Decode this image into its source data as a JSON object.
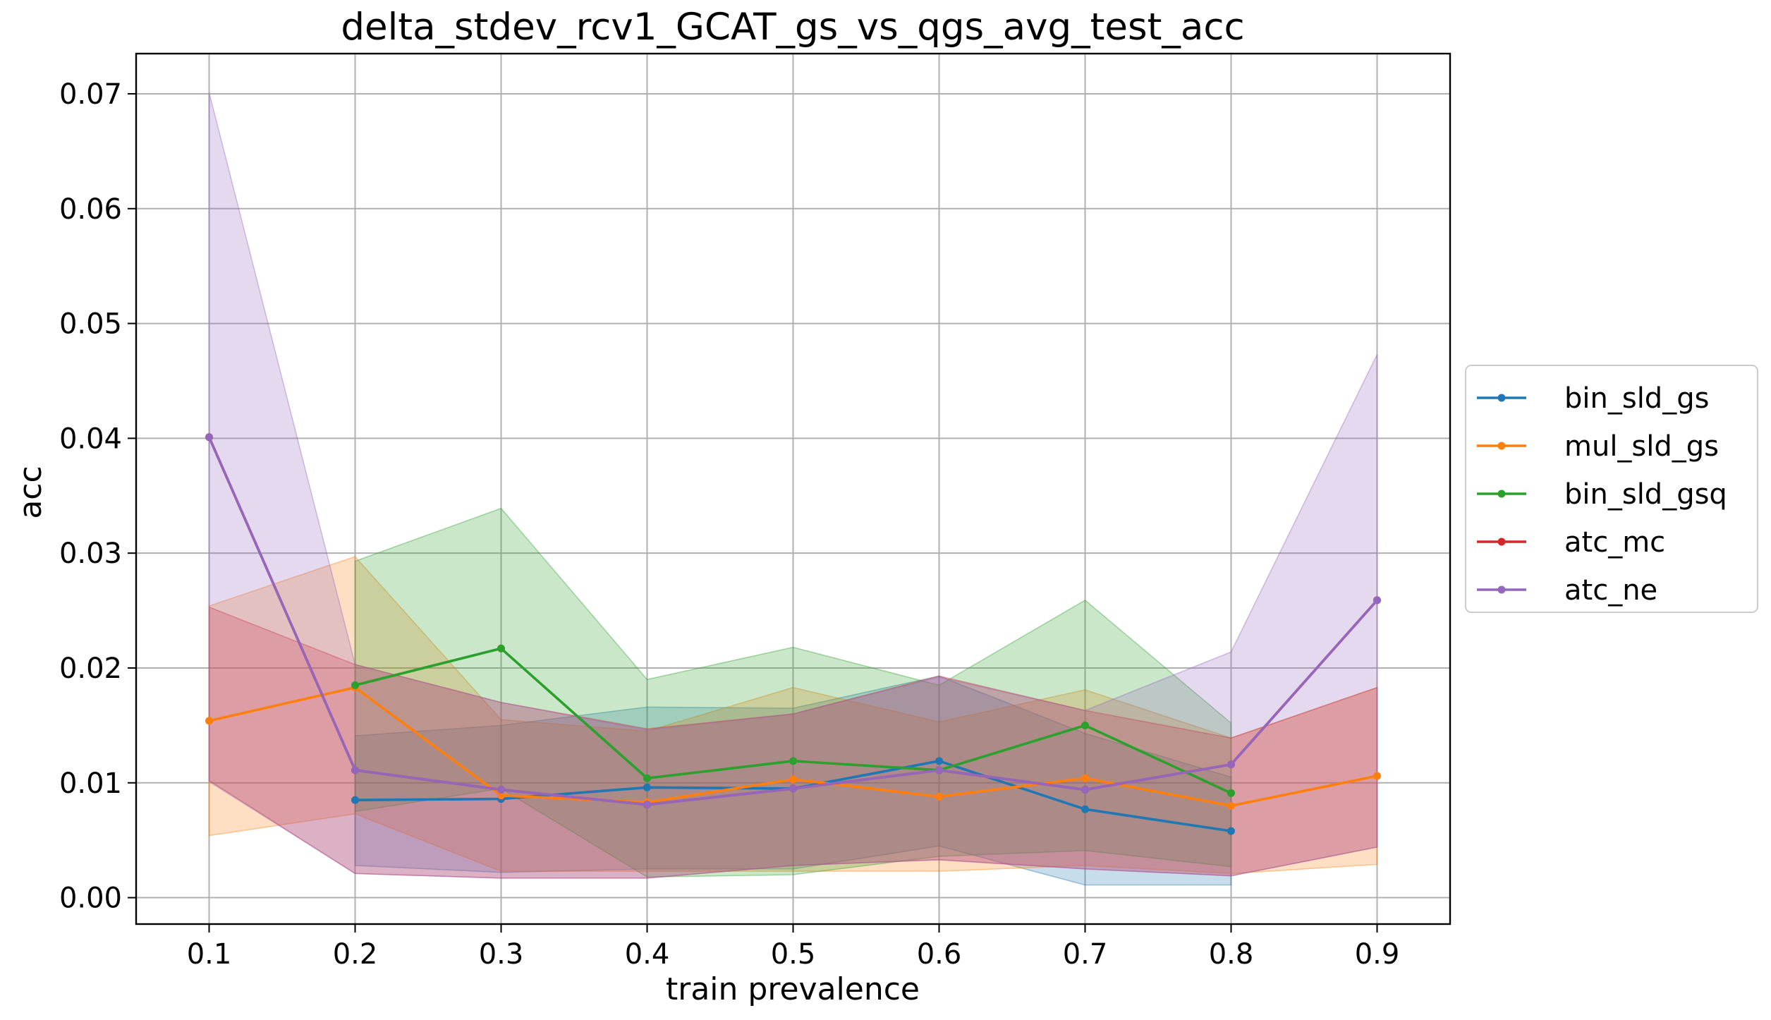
{
  "chart_data": {
    "type": "line",
    "title": "delta_stdev_rcv1_GCAT_gs_vs_qgs_avg_test_acc",
    "xlabel": "train prevalence",
    "ylabel": "acc",
    "xlim": [
      0.05,
      0.95
    ],
    "ylim": [
      -0.0023,
      0.0735
    ],
    "grid": true,
    "legend_position": "center-right-outside",
    "x_ticks": [
      "0.1",
      "0.2",
      "0.3",
      "0.4",
      "0.5",
      "0.6",
      "0.7",
      "0.8",
      "0.9"
    ],
    "y_ticks": [
      "0.00",
      "0.01",
      "0.02",
      "0.03",
      "0.04",
      "0.05",
      "0.06",
      "0.07"
    ],
    "series": [
      {
        "name": "bin_sld_gs",
        "color": "#1f77b4",
        "x": [
          0.2,
          0.3,
          0.4,
          0.5,
          0.6,
          0.7,
          0.8
        ],
        "values": [
          0.0085,
          0.0086,
          0.0096,
          0.0095,
          0.0119,
          0.0077,
          0.0058
        ],
        "band_low": [
          0.0028,
          0.0022,
          0.0025,
          0.0025,
          0.0045,
          0.0011,
          0.0011
        ],
        "band_high": [
          0.0141,
          0.015,
          0.0166,
          0.0165,
          0.0193,
          0.0143,
          0.0105
        ]
      },
      {
        "name": "mul_sld_gs",
        "color": "#ff7f0e",
        "x": [
          0.1,
          0.2,
          0.3,
          0.4,
          0.5,
          0.6,
          0.7,
          0.8,
          0.9
        ],
        "values": [
          0.0154,
          0.0183,
          0.0089,
          0.0083,
          0.0103,
          0.0088,
          0.0104,
          0.008,
          0.0106
        ],
        "band_low": [
          0.0054,
          0.0073,
          0.0023,
          0.0023,
          0.0023,
          0.0023,
          0.0028,
          0.0021,
          0.0029
        ],
        "band_high": [
          0.0254,
          0.0297,
          0.0155,
          0.0145,
          0.0183,
          0.0153,
          0.0181,
          0.0139,
          0.0183
        ]
      },
      {
        "name": "bin_sld_gsq",
        "color": "#2ca02c",
        "x": [
          0.2,
          0.3,
          0.4,
          0.5,
          0.6,
          0.7,
          0.8
        ],
        "values": [
          0.0185,
          0.0217,
          0.0104,
          0.0119,
          0.0111,
          0.015,
          0.0091
        ],
        "band_low": [
          0.0075,
          0.0095,
          0.0018,
          0.002,
          0.0036,
          0.0041,
          0.0027
        ],
        "band_high": [
          0.0293,
          0.0339,
          0.019,
          0.0218,
          0.0185,
          0.0259,
          0.0152
        ]
      },
      {
        "name": "atc_mc",
        "color": "#d62728",
        "x": [
          0.1,
          0.2,
          0.3,
          0.4,
          0.5,
          0.6,
          0.7,
          0.8,
          0.9
        ],
        "values": [
          0.0401,
          0.0111,
          0.0094,
          0.0081,
          0.0095,
          0.0111,
          0.0094,
          0.0116,
          0.0259
        ],
        "band_low": [
          0.0102,
          0.0021,
          0.0017,
          0.0017,
          0.0028,
          0.0033,
          0.0025,
          0.0019,
          0.0044
        ],
        "band_high": [
          0.0253,
          0.0203,
          0.017,
          0.0147,
          0.016,
          0.0193,
          0.0163,
          0.0139,
          0.0183
        ]
      },
      {
        "name": "atc_ne",
        "color": "#9467bd",
        "x": [
          0.1,
          0.2,
          0.3,
          0.4,
          0.5,
          0.6,
          0.7,
          0.8,
          0.9
        ],
        "values": [
          0.0401,
          0.0111,
          0.0094,
          0.0081,
          0.0095,
          0.0111,
          0.0094,
          0.0116,
          0.0259
        ],
        "band_low": [
          0.0101,
          0.0021,
          0.0017,
          0.0017,
          0.0028,
          0.0033,
          0.0025,
          0.0019,
          0.0044
        ],
        "band_high": [
          0.0701,
          0.0203,
          0.017,
          0.0146,
          0.016,
          0.0192,
          0.0163,
          0.0214,
          0.0473
        ]
      }
    ]
  }
}
